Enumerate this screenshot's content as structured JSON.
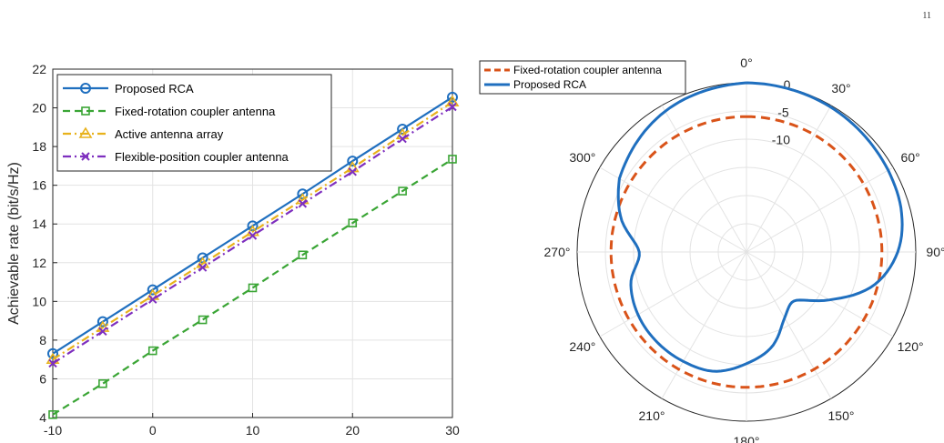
{
  "page_number": "11",
  "chart_data": [
    {
      "type": "line",
      "title": "",
      "xlabel": "",
      "ylabel": "Achievable rate (bit/s/Hz)",
      "xlim": [
        -10,
        30
      ],
      "ylim": [
        4,
        22
      ],
      "xticks": [
        -10,
        0,
        10,
        20,
        30
      ],
      "yticks": [
        4,
        6,
        8,
        10,
        12,
        14,
        16,
        18,
        20,
        22
      ],
      "grid": true,
      "legend_position": "top-left",
      "x": [
        -10,
        -5,
        0,
        5,
        10,
        15,
        20,
        25,
        30
      ],
      "series": [
        {
          "name": "Proposed RCA",
          "color": "#1f6fbf",
          "dash": "solid",
          "marker": "circle",
          "values": [
            7.3,
            8.95,
            10.6,
            12.25,
            13.9,
            15.55,
            17.25,
            18.9,
            20.55
          ]
        },
        {
          "name": "Fixed-rotation coupler antenna",
          "color": "#3aa535",
          "dash": "dashed",
          "marker": "square",
          "values": [
            4.15,
            5.75,
            7.45,
            9.05,
            10.7,
            12.4,
            14.05,
            15.7,
            17.35
          ]
        },
        {
          "name": "Active antenna array",
          "color": "#e8b21c",
          "dash": "dashdot",
          "marker": "triangle",
          "values": [
            7.0,
            8.65,
            10.3,
            11.95,
            13.6,
            15.25,
            16.9,
            18.6,
            20.3
          ]
        },
        {
          "name": "Flexible-position coupler antenna",
          "color": "#7e2fbf",
          "dash": "dashdot",
          "marker": "x",
          "values": [
            6.8,
            8.45,
            10.1,
            11.75,
            13.4,
            15.05,
            16.7,
            18.4,
            20.05
          ]
        }
      ]
    },
    {
      "type": "polar",
      "title": "",
      "angle_ticks": [
        "0°",
        "30°",
        "60°",
        "90°",
        "120°",
        "150°",
        "180°",
        "210°",
        "240°",
        "270°",
        "300°"
      ],
      "radial_ticks": [
        "0",
        "-5",
        "-10"
      ],
      "rlim_db": [
        -30,
        0
      ],
      "grid": true,
      "legend_position": "top-left",
      "series": [
        {
          "name": "Fixed-rotation coupler antenna",
          "color": "#d95319",
          "dash": "dashed",
          "angles_deg": [
            0,
            360
          ],
          "gain_db": [
            -6,
            -6
          ]
        },
        {
          "name": "Proposed RCA",
          "color": "#1f6fbf",
          "dash": "solid",
          "angles_deg": [
            0,
            30,
            60,
            75,
            90,
            105,
            120,
            135,
            150,
            165,
            180,
            195,
            210,
            225,
            240,
            255,
            270,
            285,
            300,
            330,
            360
          ],
          "gain_db": [
            0,
            -0.3,
            -1.0,
            -1.6,
            -3.2,
            -6.8,
            -13.0,
            -17.8,
            -16.5,
            -12.6,
            -10.2,
            -8.1,
            -7.6,
            -7.5,
            -7.8,
            -8.8,
            -11.0,
            -7.0,
            -4.0,
            -1.2,
            0
          ]
        }
      ]
    }
  ]
}
